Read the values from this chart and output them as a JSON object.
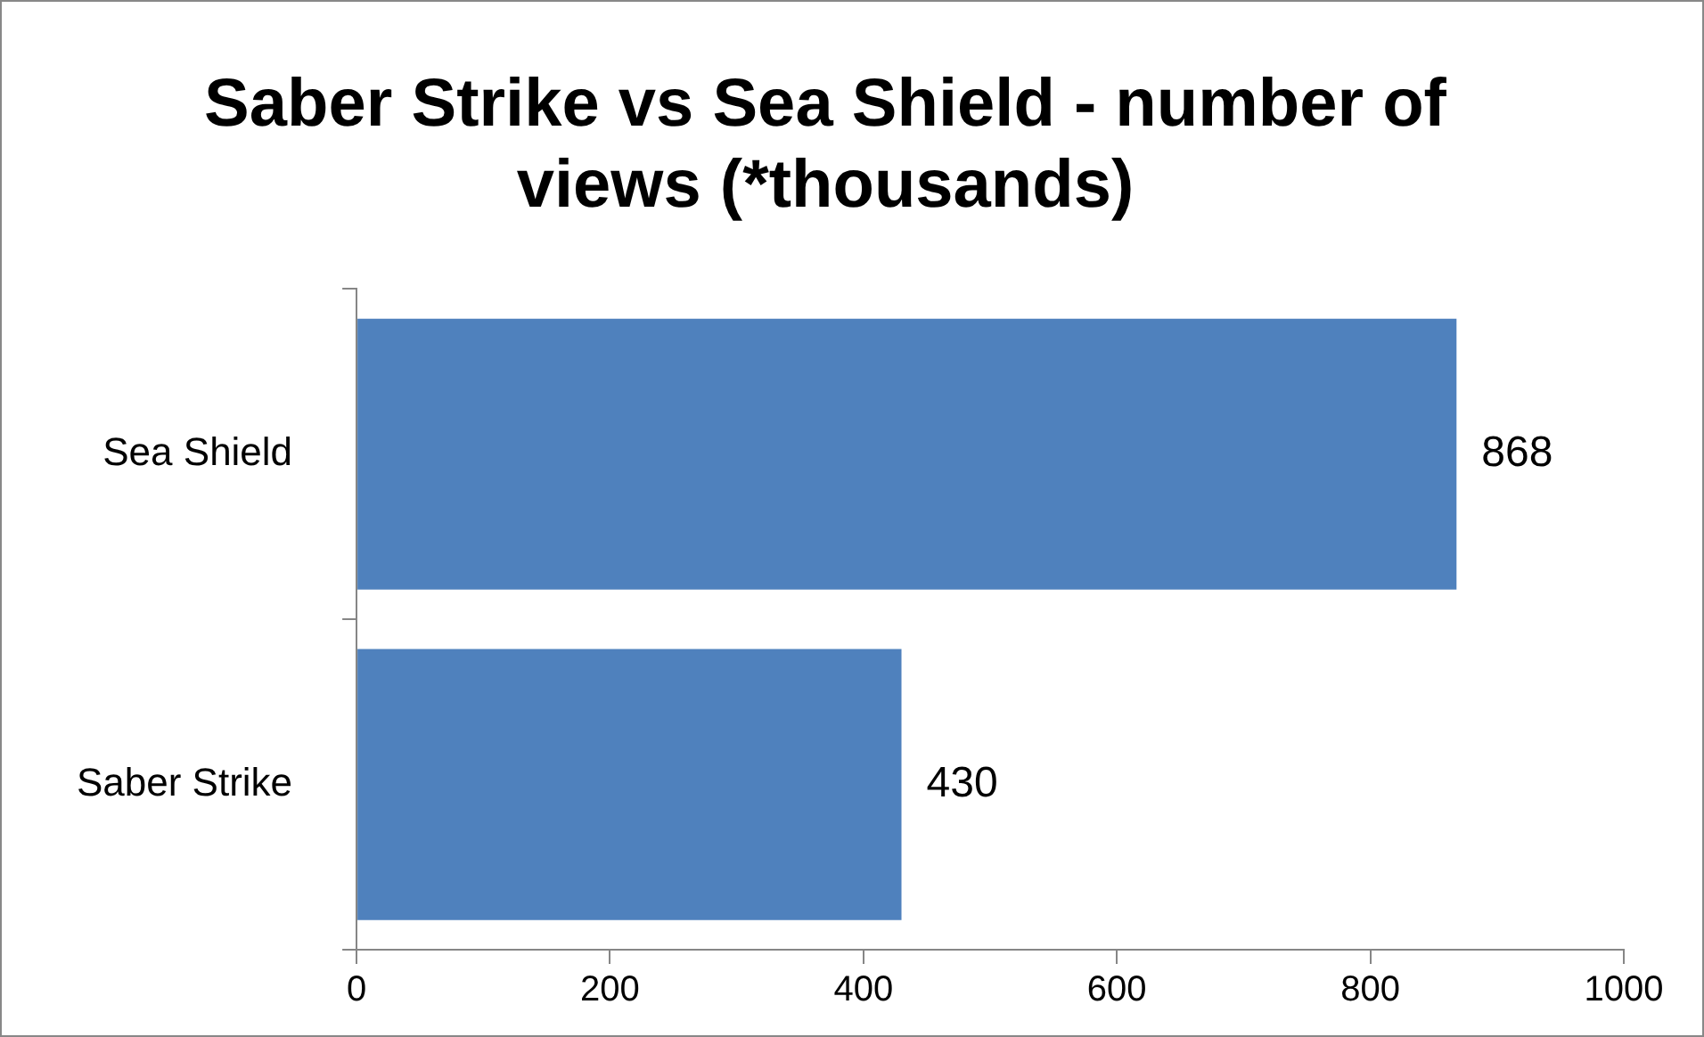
{
  "chart_data": {
    "type": "bar",
    "orientation": "horizontal",
    "title": "Saber Strike vs Sea Shield - number of views (*thousands)",
    "categories": [
      "Sea Shield",
      "Saber Strike"
    ],
    "values": [
      868,
      430
    ],
    "color": "#4f81bd",
    "xlim": [
      0,
      1000
    ],
    "xticks": [
      0,
      200,
      400,
      600,
      800,
      1000
    ],
    "grid": false,
    "data_labels": true
  }
}
